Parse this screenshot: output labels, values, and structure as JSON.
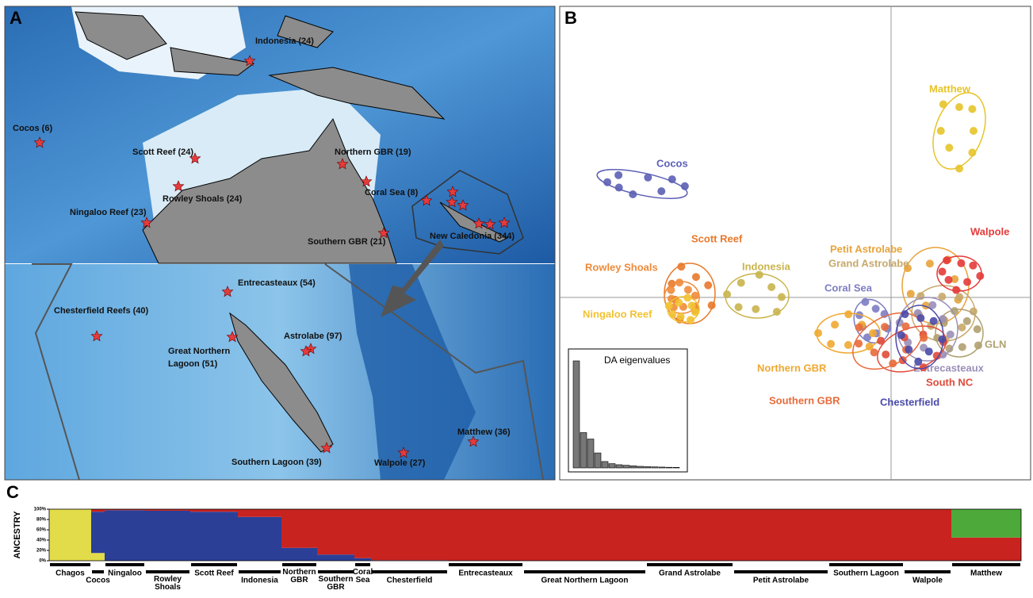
{
  "panels": {
    "a": "A",
    "b": "B",
    "c": "C"
  },
  "map": {
    "sites": [
      {
        "lines": [
          "Indonesia (24)"
        ]
      },
      {
        "lines": [
          "Cocos (6)"
        ]
      },
      {
        "lines": [
          "Scott Reef (24)"
        ]
      },
      {
        "lines": [
          "Northern GBR (19)"
        ]
      },
      {
        "lines": [
          "Coral Sea (8)"
        ]
      },
      {
        "lines": [
          "Rowley Shoals (24)"
        ]
      },
      {
        "lines": [
          "Ningaloo Reef (23)"
        ]
      },
      {
        "lines": [
          "New Caledonia (344)"
        ]
      },
      {
        "lines": [
          "Southern GBR (21)"
        ]
      },
      {
        "lines": [
          "Entrecasteaux (54)"
        ]
      },
      {
        "lines": [
          "Chesterfield Reefs (40)"
        ]
      },
      {
        "lines": [
          "Astrolabe (97)"
        ]
      },
      {
        "lines": [
          "Great Northern",
          "Lagoon (51)"
        ]
      },
      {
        "lines": [
          "Matthew (36)"
        ]
      },
      {
        "lines": [
          "Southern Lagoon (39)"
        ]
      },
      {
        "lines": [
          "Walpole (27)"
        ]
      }
    ]
  },
  "dapc": {
    "clusters": [
      {
        "label": "Matthew",
        "color": "#e6c42a"
      },
      {
        "label": "Cocos",
        "color": "#5c5fb5"
      },
      {
        "label": "Scott Reef",
        "color": "#e8792a"
      },
      {
        "label": "Rowley Shoals",
        "color": "#ef8b3a"
      },
      {
        "label": "Indonesia",
        "color": "#c9b44c"
      },
      {
        "label": "Ningaloo Reef",
        "color": "#f2c232"
      },
      {
        "label": "Petit Astrolabe",
        "color": "#e7a33a"
      },
      {
        "label": "Grand Astrolabe",
        "color": "#c8a86a"
      },
      {
        "label": "Walpole",
        "color": "#e53a3a"
      },
      {
        "label": "Coral Sea",
        "color": "#7d7dc4"
      },
      {
        "label": "GLN",
        "color": "#b0a070"
      },
      {
        "label": "Northern GBR",
        "color": "#f0a830"
      },
      {
        "label": "Entrecasteaux",
        "color": "#9a8fb8"
      },
      {
        "label": "South NC",
        "color": "#e04a3a"
      },
      {
        "label": "Southern GBR",
        "color": "#e86a3a"
      },
      {
        "label": "Chesterfield",
        "color": "#4a4aaa"
      }
    ]
  },
  "chart_data": [
    {
      "type": "bar",
      "title": "DA eigenvalues",
      "color": "#777",
      "values": [
        100,
        33,
        27,
        14,
        6,
        4,
        3,
        2.5,
        2,
        1.5,
        1.2,
        1,
        0.8,
        0.6,
        0.5
      ]
    },
    {
      "type": "stacked",
      "y_label": "ANCESTRY",
      "categories": [
        "Chagos",
        "Cocos",
        "Ningaloo",
        "Rowley Shoals",
        "Scott Reef",
        "Indonesia",
        "Northern GBR",
        "Southern GBR",
        "Coral Sea",
        "Chesterfield",
        "Entrecasteaux",
        "Great Northern Lagoon",
        "Grand Astrolabe",
        "Petit Astrolabe",
        "Southern Lagoon",
        "Walpole",
        "Matthew"
      ],
      "series": [
        {
          "color": "#e2dc4a",
          "values": [
            100,
            15,
            0,
            0,
            0,
            0,
            0,
            0,
            0,
            0,
            0,
            0,
            0,
            0,
            0,
            0,
            0
          ]
        },
        {
          "color": "#2b3f97",
          "values": [
            0,
            80,
            98,
            97,
            95,
            85,
            25,
            12,
            5,
            1,
            0,
            0,
            0,
            0,
            0,
            0,
            0
          ]
        },
        {
          "color": "#c8231f",
          "values": [
            0,
            5,
            2,
            3,
            5,
            15,
            75,
            88,
            95,
            99,
            100,
            100,
            100,
            100,
            100,
            100,
            45
          ]
        },
        {
          "color": "#4da93a",
          "values": [
            0,
            0,
            0,
            0,
            0,
            0,
            0,
            0,
            0,
            0,
            0,
            0,
            0,
            0,
            0,
            0,
            55
          ]
        }
      ],
      "ylim": [
        0,
        100
      ],
      "yticks": [
        {
          "value": 0,
          "label": "0%"
        },
        {
          "value": 20,
          "label": "20%"
        },
        {
          "value": 40,
          "label": "40%"
        },
        {
          "value": 60,
          "label": "60%"
        },
        {
          "value": 80,
          "label": "80%"
        },
        {
          "value": 100,
          "label": "100%"
        }
      ]
    }
  ]
}
